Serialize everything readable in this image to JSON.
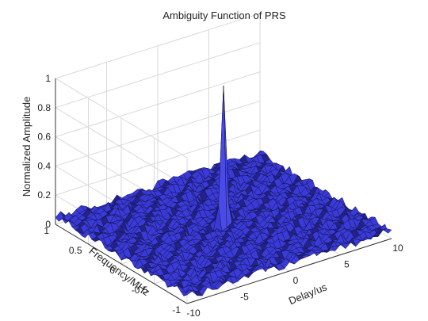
{
  "colors": {
    "surface": "#3a3ad8",
    "surface_dark": "#22228a",
    "edge": "#11114a",
    "grid": "#d9d9d9",
    "axis": "#333333",
    "background": "#ffffff"
  },
  "chart_data": {
    "type": "surface",
    "title": "Ambiguity Function of PRS",
    "xlabel": "Delay/us",
    "ylabel": "Frequency/MHz",
    "zlabel": "Normalized Amplitude",
    "xlim": [
      -10,
      10
    ],
    "ylim": [
      -1,
      1
    ],
    "zlim": [
      0,
      1
    ],
    "xticks": [
      -10,
      -5,
      0,
      5,
      10
    ],
    "yticks": [
      -1,
      -0.5,
      0,
      0.5,
      1
    ],
    "zticks": [
      0,
      0.2,
      0.4,
      0.6,
      0.8,
      1
    ],
    "x_tick_labels": [
      "-10",
      "-5",
      "0",
      "5",
      "10"
    ],
    "y_tick_labels": [
      "-1",
      "-0.5",
      "0",
      "0.5",
      "1"
    ],
    "z_tick_labels": [
      "0",
      "0.2",
      "0.4",
      "0.6",
      "0.8",
      "1"
    ],
    "grid": true,
    "peak": {
      "delay": 0,
      "frequency": 0,
      "amplitude": 1
    },
    "sidelobe_level": 0.05,
    "grid_samples": {
      "delay_points": 41,
      "frequency_points": 41
    }
  }
}
